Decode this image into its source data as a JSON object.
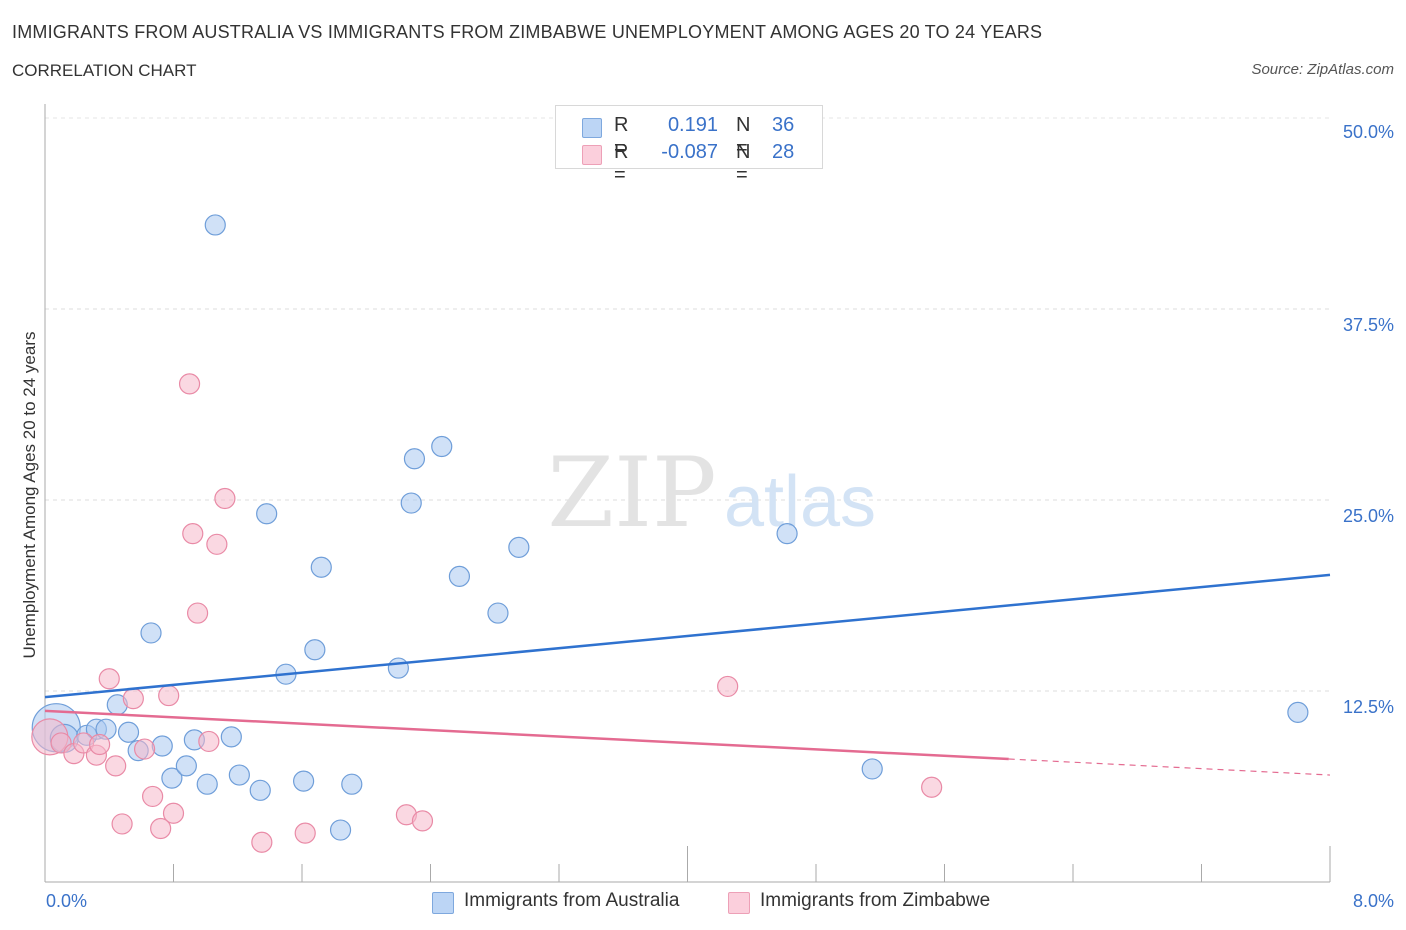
{
  "title": "IMMIGRANTS FROM AUSTRALIA VS IMMIGRANTS FROM ZIMBABWE UNEMPLOYMENT AMONG AGES 20 TO 24 YEARS",
  "subtitle": "CORRELATION CHART",
  "source": "Source: ZipAtlas.com",
  "watermark": {
    "zip": "ZIP",
    "atlas": "atlas"
  },
  "legend": {
    "rows": [
      {
        "r_label": "R =",
        "r_value": "0.191",
        "n_label": "N =",
        "n_value": "36",
        "color": "#a9c8f0"
      },
      {
        "r_label": "R =",
        "r_value": "-0.087",
        "n_label": "N =",
        "n_value": "28",
        "color": "#f6b8cb"
      }
    ]
  },
  "bottom_legend": [
    {
      "label": "Immigrants from Australia",
      "color": "#a9c8f0"
    },
    {
      "label": "Immigrants from Zimbabwe",
      "color": "#f6b8cb"
    }
  ],
  "chart_data": {
    "type": "scatter",
    "ylabel": "Unemployment Among Ages 20 to 24 years",
    "xlim": [
      0,
      8
    ],
    "ylim": [
      0,
      50
    ],
    "y_ticks": [
      {
        "value": 12.5,
        "label": "12.5%"
      },
      {
        "value": 25,
        "label": "25.0%"
      },
      {
        "value": 37.5,
        "label": "37.5%"
      },
      {
        "value": 50,
        "label": "50.0%"
      }
    ],
    "x_tick_labels": {
      "min": "0.0%",
      "max": "8.0%"
    },
    "grid": true,
    "series": [
      {
        "name": "Immigrants from Australia",
        "color": "#a9c8f0",
        "stroke": "#6f9ed9",
        "trend_color": "#2f72cf",
        "trend": {
          "x0": 0,
          "y0": 12.1,
          "x1": 8,
          "y1": 20.1,
          "dashed_from": null
        },
        "points": [
          [
            0.07,
            10.1,
            24
          ],
          [
            0.12,
            9.4,
            14
          ],
          [
            0.26,
            9.6,
            10
          ],
          [
            0.32,
            10.0,
            10
          ],
          [
            0.38,
            10.0,
            10
          ],
          [
            0.45,
            11.6,
            10
          ],
          [
            0.52,
            9.8,
            10
          ],
          [
            0.58,
            8.6,
            10
          ],
          [
            0.66,
            16.3,
            10
          ],
          [
            0.73,
            8.9,
            10
          ],
          [
            0.79,
            6.8,
            10
          ],
          [
            0.88,
            7.6,
            10
          ],
          [
            0.93,
            9.3,
            10
          ],
          [
            1.01,
            6.4,
            10
          ],
          [
            1.06,
            43.0,
            10
          ],
          [
            1.16,
            9.5,
            10
          ],
          [
            1.21,
            7.0,
            10
          ],
          [
            1.34,
            6.0,
            10
          ],
          [
            1.38,
            24.1,
            10
          ],
          [
            1.5,
            13.6,
            10
          ],
          [
            1.61,
            6.6,
            10
          ],
          [
            1.68,
            15.2,
            10
          ],
          [
            1.72,
            20.6,
            10
          ],
          [
            1.84,
            3.4,
            10
          ],
          [
            1.91,
            6.4,
            10
          ],
          [
            2.2,
            14.0,
            10
          ],
          [
            2.28,
            24.8,
            10
          ],
          [
            2.3,
            27.7,
            10
          ],
          [
            2.47,
            28.5,
            10
          ],
          [
            2.58,
            20.0,
            10
          ],
          [
            2.82,
            17.6,
            10
          ],
          [
            2.95,
            21.9,
            10
          ],
          [
            4.62,
            22.8,
            10
          ],
          [
            5.15,
            7.4,
            10
          ],
          [
            7.8,
            11.1,
            10
          ]
        ]
      },
      {
        "name": "Immigrants from Zimbabwe",
        "color": "#f6b8cb",
        "stroke": "#e98aa6",
        "trend_color": "#e46b91",
        "trend": {
          "x0": 0,
          "y0": 11.2,
          "x1": 8,
          "y1": 7.0,
          "dashed_from": 6.0
        },
        "points": [
          [
            0.03,
            9.5,
            18
          ],
          [
            0.1,
            9.1,
            10
          ],
          [
            0.18,
            8.4,
            10
          ],
          [
            0.24,
            9.1,
            10
          ],
          [
            0.32,
            8.3,
            10
          ],
          [
            0.34,
            9.0,
            10
          ],
          [
            0.4,
            13.3,
            10
          ],
          [
            0.44,
            7.6,
            10
          ],
          [
            0.48,
            3.8,
            10
          ],
          [
            0.55,
            12.0,
            10
          ],
          [
            0.62,
            8.7,
            10
          ],
          [
            0.67,
            5.6,
            10
          ],
          [
            0.72,
            3.5,
            10
          ],
          [
            0.77,
            12.2,
            10
          ],
          [
            0.8,
            4.5,
            10
          ],
          [
            0.9,
            32.6,
            10
          ],
          [
            0.92,
            22.8,
            10
          ],
          [
            0.95,
            17.6,
            10
          ],
          [
            1.02,
            9.2,
            10
          ],
          [
            1.07,
            22.1,
            10
          ],
          [
            1.12,
            25.1,
            10
          ],
          [
            1.35,
            2.6,
            10
          ],
          [
            1.62,
            3.2,
            10
          ],
          [
            2.25,
            4.4,
            10
          ],
          [
            2.35,
            4.0,
            10
          ],
          [
            4.25,
            12.8,
            10
          ],
          [
            5.52,
            6.2,
            10
          ]
        ]
      }
    ]
  }
}
